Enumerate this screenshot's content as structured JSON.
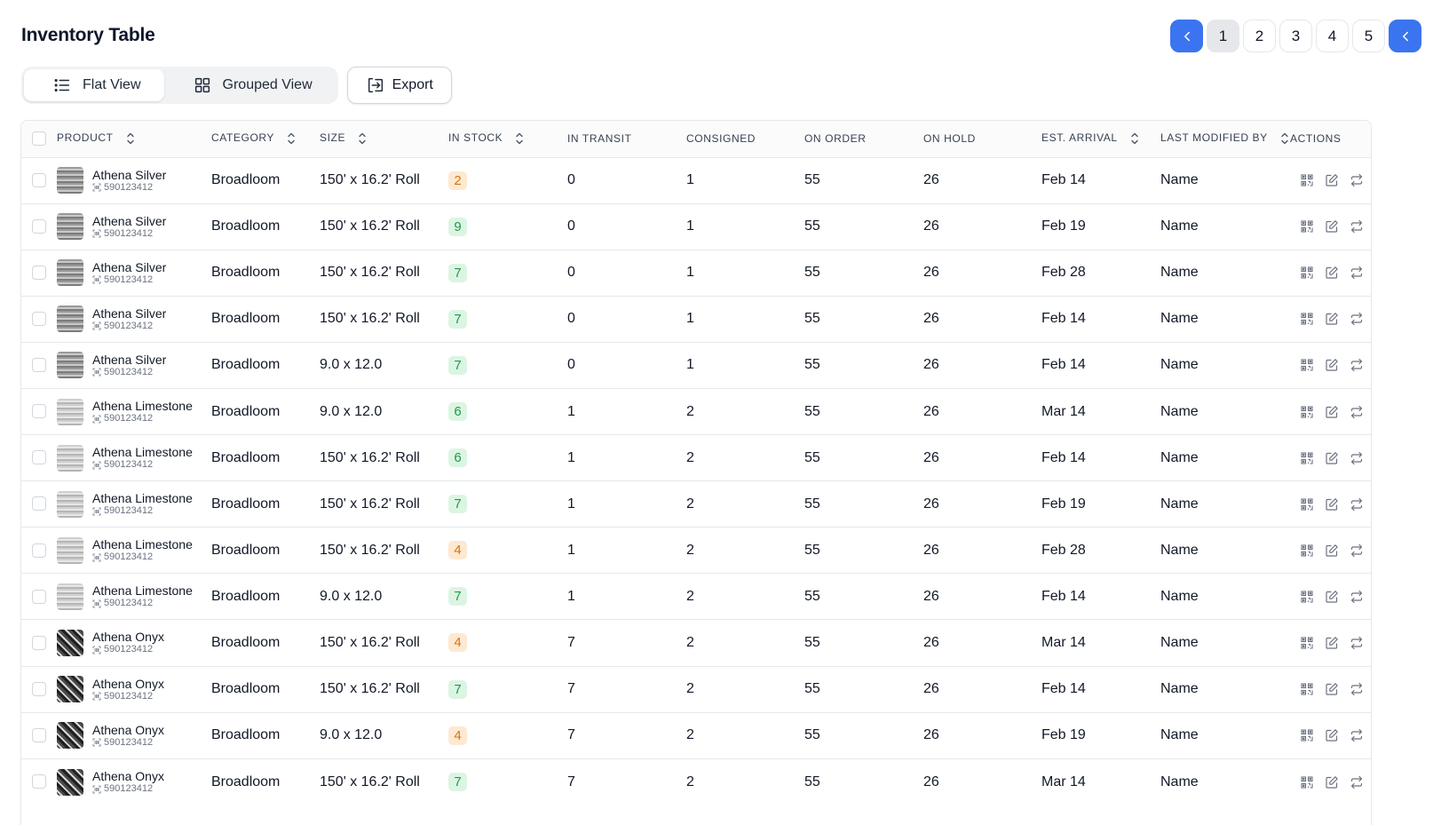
{
  "page": {
    "title": "Inventory Table"
  },
  "pagination": {
    "pages": [
      "1",
      "2",
      "3",
      "4",
      "5"
    ],
    "current": "1"
  },
  "toolbar": {
    "flat_view": "Flat View",
    "grouped_view": "Grouped View",
    "export": "Export"
  },
  "table": {
    "headers": {
      "product": "PRODUCT",
      "category": "CATEGORY",
      "size": "SIZE",
      "in_stock": "IN STOCK",
      "in_transit": "IN TRANSIT",
      "consigned": "CONSIGNED",
      "on_order": "ON ORDER",
      "on_hold": "ON HOLD",
      "est_arrival": "EST. ARRIVAL",
      "last_modified_by": "LAST MODIFIED BY",
      "actions": "ACTIONS"
    },
    "rows": [
      {
        "name": "Athena Silver",
        "sku": "590123412",
        "swatch": "silver",
        "category": "Broadloom",
        "size": "150' x 16.2' Roll",
        "in_stock": "2",
        "stock_status": "orange",
        "in_transit": "0",
        "consigned": "1",
        "on_order": "55",
        "on_hold": "26",
        "est_arrival": "Feb 14",
        "modified_by": "Name"
      },
      {
        "name": "Athena Silver",
        "sku": "590123412",
        "swatch": "silver",
        "category": "Broadloom",
        "size": "150' x 16.2' Roll",
        "in_stock": "9",
        "stock_status": "green",
        "in_transit": "0",
        "consigned": "1",
        "on_order": "55",
        "on_hold": "26",
        "est_arrival": "Feb 19",
        "modified_by": "Name"
      },
      {
        "name": "Athena Silver",
        "sku": "590123412",
        "swatch": "silver",
        "category": "Broadloom",
        "size": "150' x 16.2' Roll",
        "in_stock": "7",
        "stock_status": "green",
        "in_transit": "0",
        "consigned": "1",
        "on_order": "55",
        "on_hold": "26",
        "est_arrival": "Feb 28",
        "modified_by": "Name"
      },
      {
        "name": "Athena Silver",
        "sku": "590123412",
        "swatch": "silver",
        "category": "Broadloom",
        "size": "150' x 16.2' Roll",
        "in_stock": "7",
        "stock_status": "green",
        "in_transit": "0",
        "consigned": "1",
        "on_order": "55",
        "on_hold": "26",
        "est_arrival": "Feb 14",
        "modified_by": "Name"
      },
      {
        "name": "Athena Silver",
        "sku": "590123412",
        "swatch": "silver",
        "category": "Broadloom",
        "size": "9.0 x 12.0",
        "in_stock": "7",
        "stock_status": "green",
        "in_transit": "0",
        "consigned": "1",
        "on_order": "55",
        "on_hold": "26",
        "est_arrival": "Feb 14",
        "modified_by": "Name"
      },
      {
        "name": "Athena Limestone",
        "sku": "590123412",
        "swatch": "limestone",
        "category": "Broadloom",
        "size": "9.0 x 12.0",
        "in_stock": "6",
        "stock_status": "green",
        "in_transit": "1",
        "consigned": "2",
        "on_order": "55",
        "on_hold": "26",
        "est_arrival": "Mar 14",
        "modified_by": "Name"
      },
      {
        "name": "Athena Limestone",
        "sku": "590123412",
        "swatch": "limestone",
        "category": "Broadloom",
        "size": "150' x 16.2' Roll",
        "in_stock": "6",
        "stock_status": "green",
        "in_transit": "1",
        "consigned": "2",
        "on_order": "55",
        "on_hold": "26",
        "est_arrival": "Feb 14",
        "modified_by": "Name"
      },
      {
        "name": "Athena Limestone",
        "sku": "590123412",
        "swatch": "limestone",
        "category": "Broadloom",
        "size": "150' x 16.2' Roll",
        "in_stock": "7",
        "stock_status": "green",
        "in_transit": "1",
        "consigned": "2",
        "on_order": "55",
        "on_hold": "26",
        "est_arrival": "Feb 19",
        "modified_by": "Name"
      },
      {
        "name": "Athena Limestone",
        "sku": "590123412",
        "swatch": "limestone",
        "category": "Broadloom",
        "size": "150' x 16.2' Roll",
        "in_stock": "4",
        "stock_status": "orange",
        "in_transit": "1",
        "consigned": "2",
        "on_order": "55",
        "on_hold": "26",
        "est_arrival": "Feb 28",
        "modified_by": "Name"
      },
      {
        "name": "Athena Limestone",
        "sku": "590123412",
        "swatch": "limestone",
        "category": "Broadloom",
        "size": "9.0 x 12.0",
        "in_stock": "7",
        "stock_status": "green",
        "in_transit": "1",
        "consigned": "2",
        "on_order": "55",
        "on_hold": "26",
        "est_arrival": "Feb 14",
        "modified_by": "Name"
      },
      {
        "name": "Athena Onyx",
        "sku": "590123412",
        "swatch": "onyx",
        "category": "Broadloom",
        "size": "150' x 16.2' Roll",
        "in_stock": "4",
        "stock_status": "orange",
        "in_transit": "7",
        "consigned": "2",
        "on_order": "55",
        "on_hold": "26",
        "est_arrival": "Mar 14",
        "modified_by": "Name"
      },
      {
        "name": "Athena Onyx",
        "sku": "590123412",
        "swatch": "onyx",
        "category": "Broadloom",
        "size": "150' x 16.2' Roll",
        "in_stock": "7",
        "stock_status": "green",
        "in_transit": "7",
        "consigned": "2",
        "on_order": "55",
        "on_hold": "26",
        "est_arrival": "Feb 14",
        "modified_by": "Name"
      },
      {
        "name": "Athena Onyx",
        "sku": "590123412",
        "swatch": "onyx",
        "category": "Broadloom",
        "size": "9.0 x 12.0",
        "in_stock": "4",
        "stock_status": "orange",
        "in_transit": "7",
        "consigned": "2",
        "on_order": "55",
        "on_hold": "26",
        "est_arrival": "Feb 19",
        "modified_by": "Name"
      },
      {
        "name": "Athena Onyx",
        "sku": "590123412",
        "swatch": "onyx",
        "category": "Broadloom",
        "size": "150' x 16.2' Roll",
        "in_stock": "7",
        "stock_status": "green",
        "in_transit": "7",
        "consigned": "2",
        "on_order": "55",
        "on_hold": "26",
        "est_arrival": "Mar 14",
        "modified_by": "Name"
      }
    ]
  },
  "colors": {
    "accent": "#3b74f0",
    "stock_green": "#1e9a4b",
    "stock_orange": "#d8730f"
  },
  "icons": [
    "chevron-left-icon",
    "list-icon",
    "grid-icon",
    "export-icon",
    "sort-icon",
    "barcode-icon",
    "qr-code-icon",
    "edit-icon",
    "transfer-icon"
  ]
}
